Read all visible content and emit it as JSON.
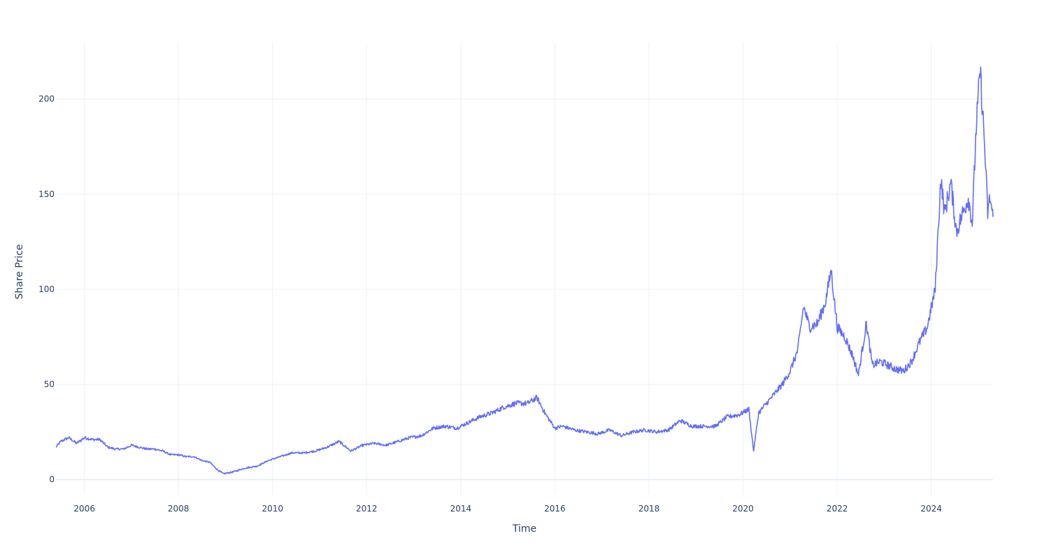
{
  "chart_data": {
    "type": "line",
    "title": "",
    "xlabel": "Time",
    "ylabel": "Share Price",
    "xlim": [
      "2005-05-25",
      "2025-04-25"
    ],
    "ylim": [
      -8,
      230
    ],
    "x_ticks": [
      2006,
      2008,
      2010,
      2012,
      2014,
      2016,
      2018,
      2020,
      2022,
      2024
    ],
    "y_ticks": [
      0,
      50,
      100,
      150,
      200
    ],
    "grid": true,
    "legend": "none",
    "line_color": "#636efa",
    "grid_color": "#ebf0f8",
    "zeroline_color": "#ebf0f8",
    "series": [
      {
        "x": [
          "2005-05-25",
          "2005-07-01",
          "2005-09-01",
          "2005-11-01",
          "2006-01-01",
          "2006-03-01",
          "2006-05-01",
          "2006-07-01",
          "2006-09-01",
          "2006-11-01",
          "2007-01-01",
          "2007-03-01",
          "2007-05-01",
          "2007-07-01",
          "2007-09-01",
          "2007-11-01",
          "2008-01-01",
          "2008-03-01",
          "2008-05-01",
          "2008-07-01",
          "2008-09-01",
          "2008-11-01",
          "2008-12-15",
          "2009-03-01",
          "2009-06-01",
          "2009-09-01",
          "2009-12-01",
          "2010-03-01",
          "2010-06-01",
          "2010-09-01",
          "2010-12-01",
          "2011-03-01",
          "2011-06-01",
          "2011-09-01",
          "2011-12-01",
          "2012-03-01",
          "2012-06-01",
          "2012-09-01",
          "2012-12-01",
          "2013-03-01",
          "2013-06-01",
          "2013-09-01",
          "2013-12-01",
          "2014-03-01",
          "2014-06-01",
          "2014-09-01",
          "2014-12-01",
          "2015-03-01",
          "2015-06-01",
          "2015-08-15",
          "2015-10-15",
          "2016-01-01",
          "2016-03-01",
          "2016-06-01",
          "2016-09-01",
          "2016-12-01",
          "2017-03-01",
          "2017-06-01",
          "2017-09-01",
          "2017-12-01",
          "2018-03-01",
          "2018-06-01",
          "2018-09-01",
          "2018-12-01",
          "2019-03-01",
          "2019-06-01",
          "2019-09-01",
          "2019-12-01",
          "2020-02-15",
          "2020-03-23",
          "2020-05-01",
          "2020-07-01",
          "2020-09-01",
          "2020-11-01",
          "2021-01-01",
          "2021-03-01",
          "2021-04-15",
          "2021-06-01",
          "2021-08-01",
          "2021-10-01",
          "2021-11-15",
          "2022-01-01",
          "2022-03-01",
          "2022-05-01",
          "2022-06-15",
          "2022-08-15",
          "2022-10-01",
          "2022-12-01",
          "2023-02-01",
          "2023-04-01",
          "2023-06-01",
          "2023-08-01",
          "2023-10-01",
          "2023-12-01",
          "2024-02-01",
          "2024-03-15",
          "2024-04-15",
          "2024-06-01",
          "2024-07-15",
          "2024-09-01",
          "2024-10-15",
          "2024-11-15",
          "2024-12-15",
          "2025-01-15",
          "2025-02-15",
          "2025-03-15",
          "2025-04-01",
          "2025-04-25"
        ],
        "y": [
          17,
          20,
          22,
          19,
          22,
          21,
          21,
          17,
          16,
          16,
          18,
          17,
          16,
          16,
          15,
          13,
          13,
          12,
          12,
          10,
          9,
          5,
          3,
          4,
          6,
          7,
          10,
          12,
          14,
          14,
          15,
          17,
          20,
          15,
          18,
          19,
          18,
          20,
          22,
          23,
          27,
          28,
          27,
          30,
          33,
          35,
          38,
          40,
          40,
          43,
          35,
          27,
          28,
          26,
          25,
          24,
          26,
          23,
          25,
          26,
          25,
          26,
          31,
          28,
          28,
          28,
          33,
          34,
          37,
          15,
          35,
          40,
          45,
          50,
          57,
          68,
          91,
          80,
          82,
          93,
          110,
          80,
          75,
          65,
          55,
          82,
          60,
          62,
          60,
          58,
          57,
          62,
          72,
          80,
          100,
          158,
          140,
          156,
          130,
          140,
          148,
          135,
          185,
          215,
          180,
          140,
          148,
          138
        ]
      }
    ]
  }
}
